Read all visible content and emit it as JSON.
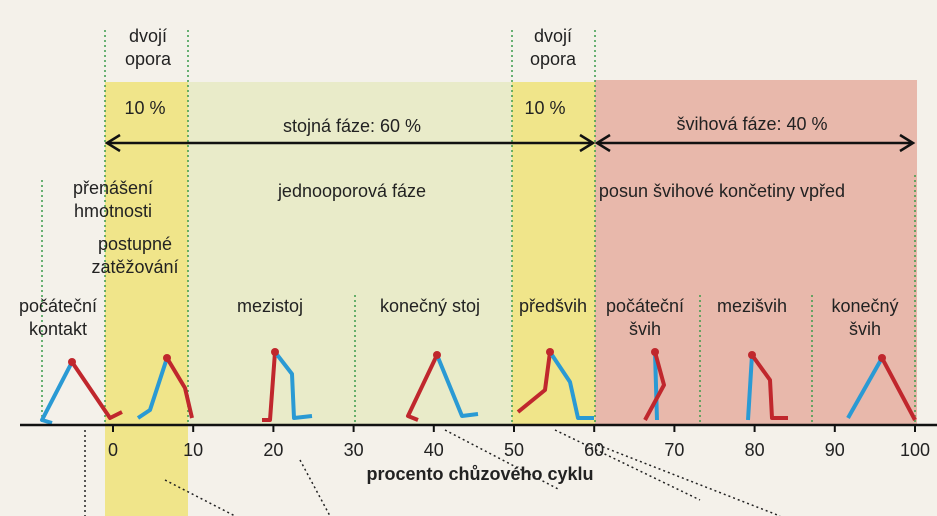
{
  "header": {
    "double_support_left": [
      "dvojí",
      "opora"
    ],
    "double_support_right": [
      "dvojí",
      "opora"
    ],
    "percent_left": "10 %",
    "percent_right": "10 %",
    "stance_phase": "stojná fáze: 60 %",
    "swing_phase": "švihová fáze: 40 %"
  },
  "phases": {
    "weight_acceptance": [
      "přenášení",
      "hmotnosti"
    ],
    "loading": [
      "postupné",
      "zatěžování"
    ],
    "single_support": "jednooporová fáze",
    "limb_advancement": "posun švihové končetiny vpřed"
  },
  "events": [
    [
      "počáteční",
      "kontakt"
    ],
    [
      "mezistoj"
    ],
    [
      "konečný stoj"
    ],
    [
      "předšvih"
    ],
    [
      "počáteční",
      "švih"
    ],
    [
      "mezišvih"
    ],
    [
      "konečný",
      "švih"
    ]
  ],
  "axis": {
    "title": "procento chůzového cyklu",
    "ticks": [
      0,
      10,
      20,
      30,
      40,
      50,
      60,
      70,
      80,
      90,
      100
    ]
  }
}
